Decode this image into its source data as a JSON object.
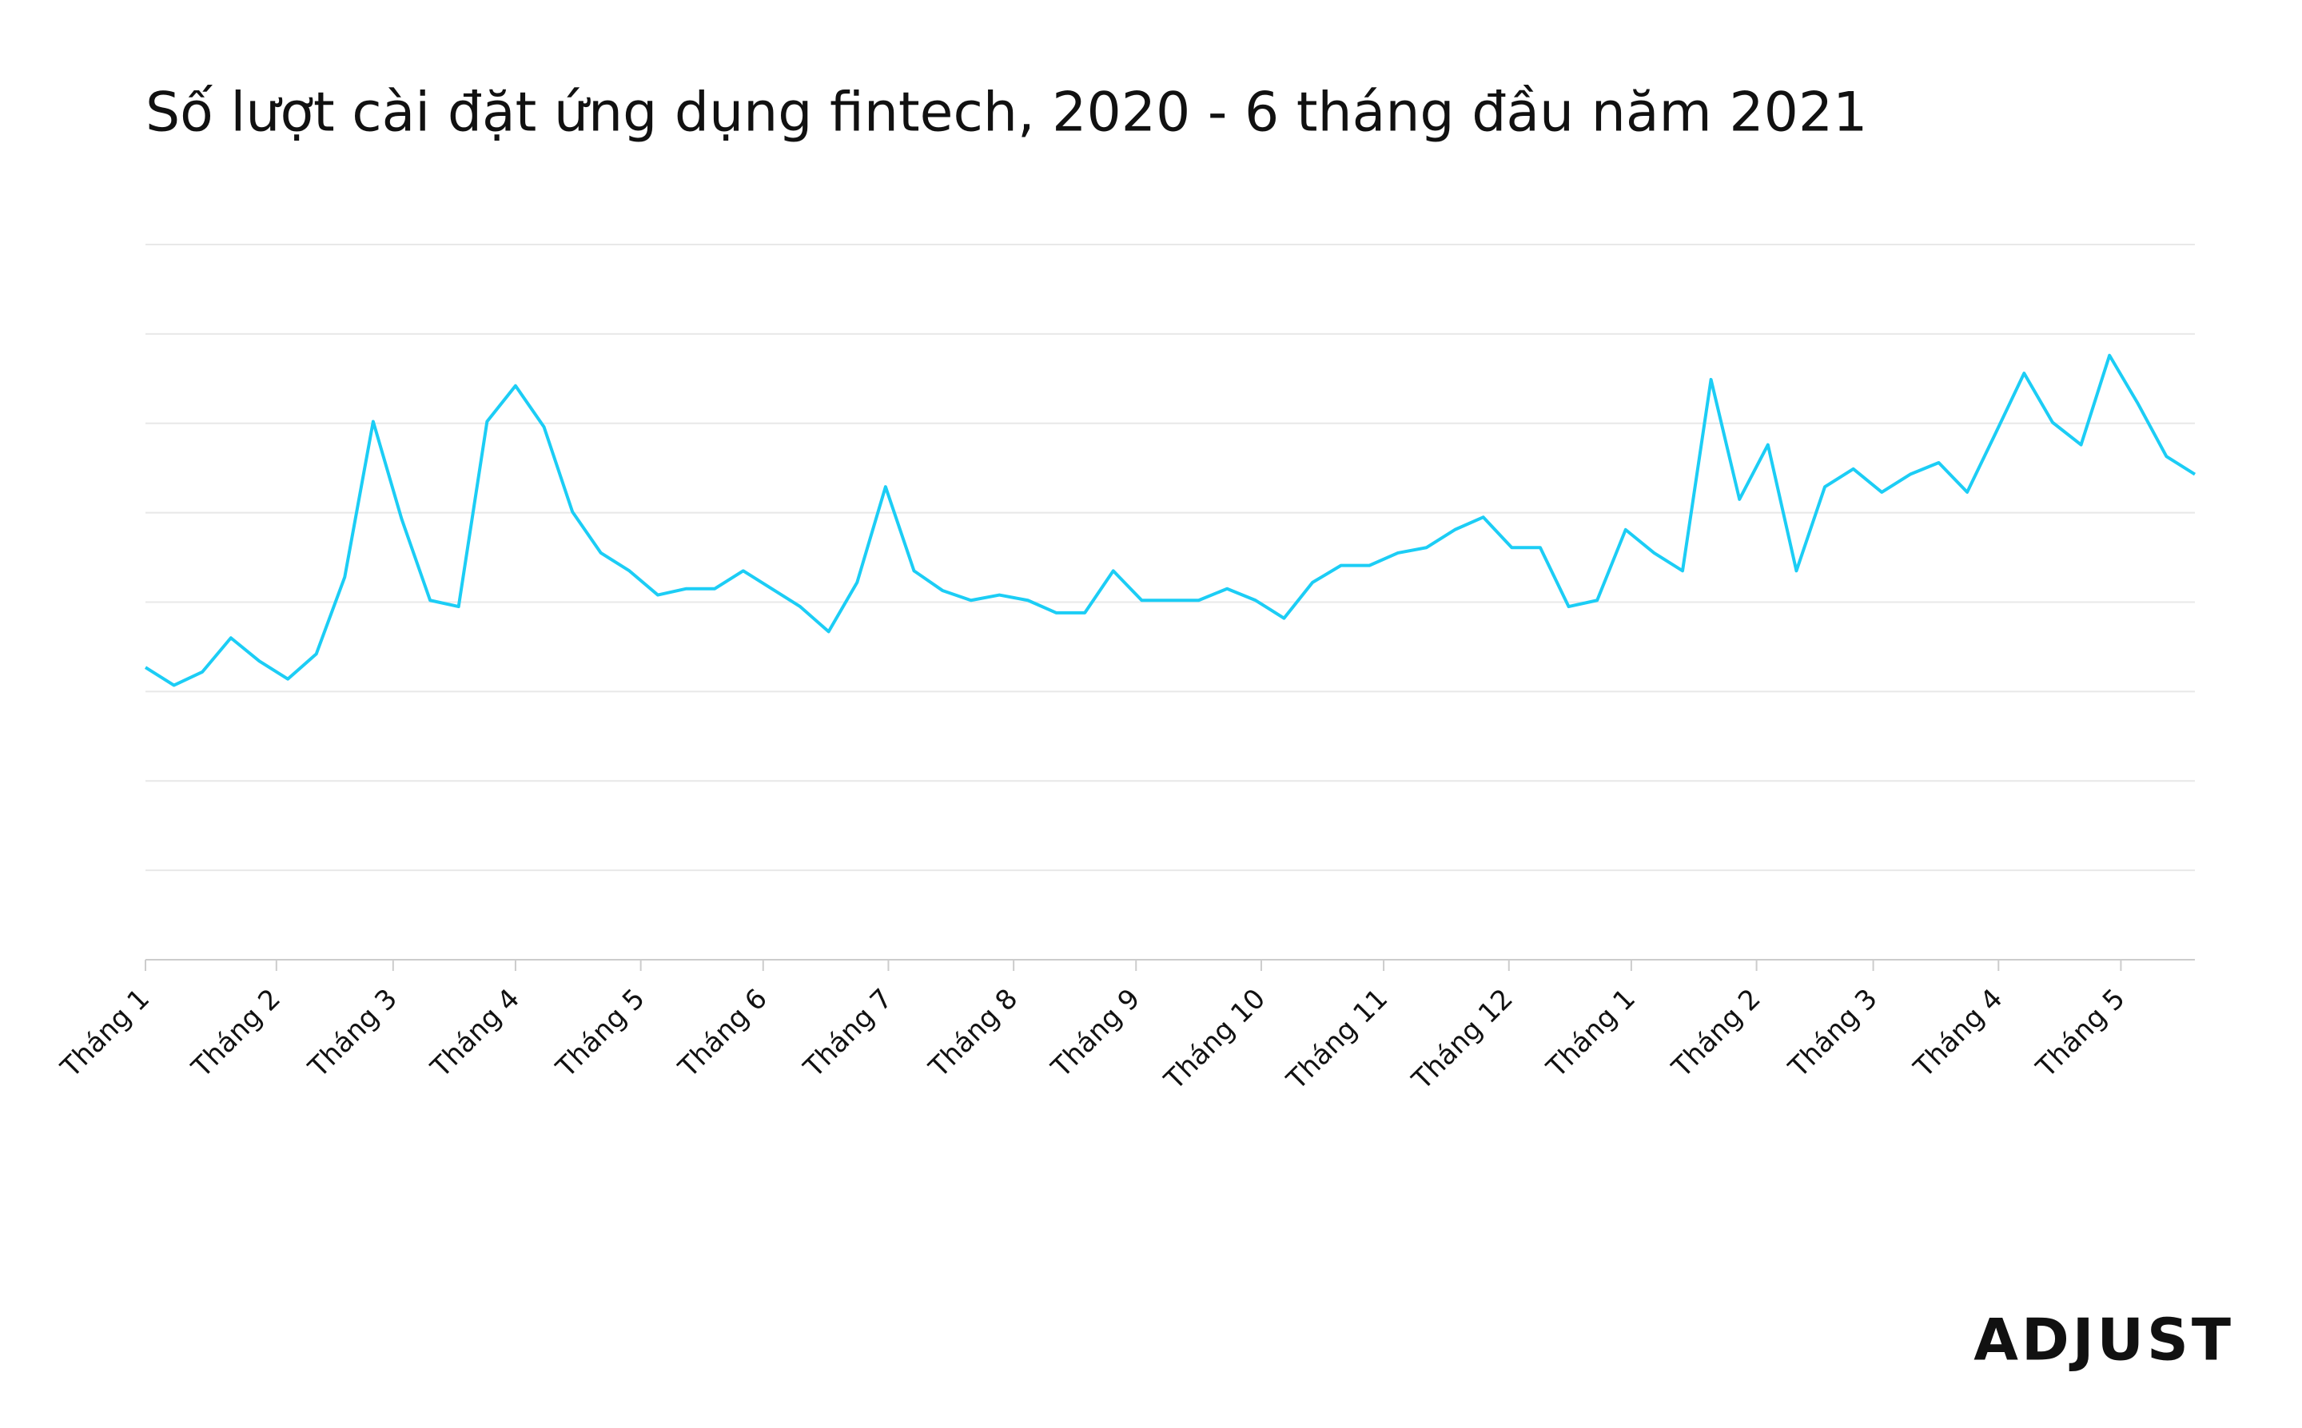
{
  "chart_data": {
    "type": "line",
    "title": "Số lượt cài đặt ứng dụng fintech, 2020 - 6 tháng đầu năm 2021",
    "x": [
      0,
      1,
      2,
      3,
      4,
      5,
      6,
      7,
      8,
      9,
      10,
      11,
      12,
      13,
      14,
      15,
      16,
      17,
      18,
      19,
      20,
      21,
      22,
      23,
      24,
      25,
      26,
      27,
      28,
      29,
      30,
      31,
      32,
      33,
      34,
      35,
      36,
      37,
      38,
      39,
      40,
      41,
      42,
      43,
      44,
      45,
      46,
      47,
      48,
      49,
      50,
      51,
      52,
      53,
      54,
      55,
      56,
      57,
      58,
      59,
      60,
      61,
      62,
      63,
      64,
      65,
      66,
      67,
      68,
      69,
      70,
      71,
      72
    ],
    "series": [
      {
        "color": "#1ccdf5",
        "values": [
          3.27,
          3.07,
          3.22,
          3.6,
          3.34,
          3.14,
          3.42,
          4.28,
          6.02,
          4.93,
          4.02,
          3.95,
          6.02,
          6.42,
          5.96,
          5.01,
          4.55,
          4.35,
          4.08,
          4.15,
          4.15,
          4.35,
          4.15,
          3.95,
          3.67,
          4.22,
          5.29,
          4.35,
          4.13,
          4.02,
          4.08,
          4.02,
          3.88,
          3.88,
          4.35,
          4.02,
          4.02,
          4.02,
          4.15,
          4.02,
          3.82,
          4.22,
          4.41,
          4.41,
          4.55,
          4.61,
          4.81,
          4.95,
          4.61,
          4.61,
          3.95,
          4.02,
          4.81,
          4.55,
          4.35,
          6.49,
          5.15,
          5.76,
          4.35,
          5.29,
          5.49,
          5.23,
          5.43,
          5.56,
          5.23,
          5.89,
          6.56,
          6.01,
          5.76,
          6.76,
          6.22,
          5.63,
          5.43
        ]
      }
    ],
    "xlim": [
      0,
      72
    ],
    "xticks": [
      {
        "value": 0,
        "label": "Tháng 1"
      },
      {
        "value": 4.6,
        "label": "Tháng 2"
      },
      {
        "value": 8.7,
        "label": "Tháng 3"
      },
      {
        "value": 13,
        "label": "Tháng 4"
      },
      {
        "value": 17.4,
        "label": "Tháng 5"
      },
      {
        "value": 21.7,
        "label": "Tháng 6"
      },
      {
        "value": 26.1,
        "label": "Tháng 7"
      },
      {
        "value": 30.5,
        "label": "Tháng 8"
      },
      {
        "value": 34.8,
        "label": "Tháng 9"
      },
      {
        "value": 39.2,
        "label": "Tháng 10"
      },
      {
        "value": 43.5,
        "label": "Tháng 11"
      },
      {
        "value": 47.9,
        "label": "Tháng 12"
      },
      {
        "value": 52.2,
        "label": "Tháng 1"
      },
      {
        "value": 56.6,
        "label": "Tháng 2"
      },
      {
        "value": 60.7,
        "label": "Tháng 3"
      },
      {
        "value": 65.1,
        "label": "Tháng 4"
      },
      {
        "value": 69.4,
        "label": "Tháng 5"
      }
    ],
    "ylim": [
      0,
      8
    ],
    "yticks": [
      0,
      1,
      2,
      3,
      4,
      5,
      6,
      7,
      8
    ],
    "grid": true
  },
  "logo": "ADJUST"
}
